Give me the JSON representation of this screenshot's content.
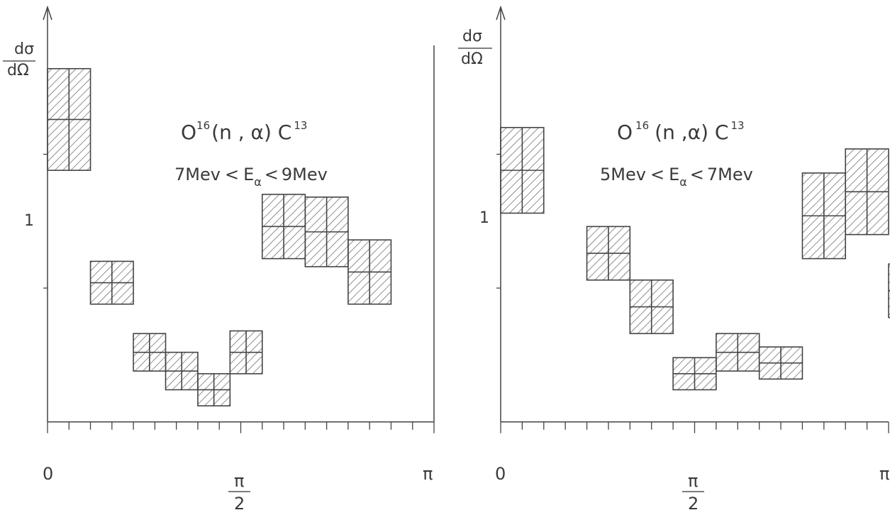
{
  "chart_data": [
    {
      "type": "bar",
      "title": "O¹⁶(n,α)C¹³",
      "title_parts": {
        "t1": "O",
        "s1": "16",
        "t2": "(n , α) C",
        "s2": "13"
      },
      "subtitle": "7Mev < Eα < 9Mev",
      "subtitle_parts": {
        "a": "7Mev",
        "b": "<",
        "c": "E",
        "d": "α",
        "e": "<",
        "f": "9Mev"
      },
      "ylabel_num": "dσ",
      "ylabel_den": "dΩ",
      "y_tick_label": "1",
      "y_tick_value": 1,
      "y_ticks": [
        0.5,
        1
      ],
      "x_tick_labels": {
        "zero": "0",
        "half_num": "π",
        "half_den": "2",
        "full": "π"
      },
      "xlim": [
        0,
        3.1416
      ],
      "ylim": [
        -0.12,
        1.55
      ],
      "x_minor_ticks": 18,
      "grid": false,
      "values": [
        {
          "x0": 0.0,
          "x1": 0.3491,
          "y": 1.13,
          "err": 0.19
        },
        {
          "x0": 0.3491,
          "x1": 0.6981,
          "y": 0.52,
          "err": 0.08
        },
        {
          "x0": 0.6981,
          "x1": 0.9599,
          "y": 0.26,
          "err": 0.07
        },
        {
          "x0": 0.9599,
          "x1": 1.2217,
          "y": 0.19,
          "err": 0.07
        },
        {
          "x0": 1.2217,
          "x1": 1.4835,
          "y": 0.12,
          "err": 0.06
        },
        {
          "x0": 1.4835,
          "x1": 1.7453,
          "y": 0.26,
          "err": 0.08
        },
        {
          "x0": 1.7453,
          "x1": 2.0944,
          "y": 0.73,
          "err": 0.12
        },
        {
          "x0": 2.0944,
          "x1": 2.4435,
          "y": 0.71,
          "err": 0.13
        },
        {
          "x0": 2.4435,
          "x1": 2.7925,
          "y": 0.56,
          "err": 0.12
        }
      ]
    },
    {
      "type": "bar",
      "title": "O¹⁶(n,α)C¹³",
      "title_parts": {
        "t1": "O",
        "s1": "16",
        "t2": "(n ,α) C",
        "s2": "13"
      },
      "subtitle": "5Mev < Eα < 7Mev",
      "subtitle_parts": {
        "a": "5Mev",
        "b": "<",
        "c": "E",
        "d": "α",
        "e": "<",
        "f": "7Mev"
      },
      "ylabel_num": "dσ",
      "ylabel_den": "dΩ",
      "y_tick_label": "1",
      "y_tick_value": 1,
      "y_ticks": [
        0.5,
        1
      ],
      "x_tick_labels": {
        "zero": "0",
        "half_num": "π",
        "half_den": "2",
        "full": "π"
      },
      "xlim": [
        0,
        3.1416
      ],
      "ylim": [
        -0.12,
        1.55
      ],
      "x_minor_ticks": 18,
      "grid": false,
      "values": [
        {
          "x0": 0.0,
          "x1": 0.3491,
          "y": 0.94,
          "err": 0.16
        },
        {
          "x0": 0.6981,
          "x1": 1.0472,
          "y": 0.63,
          "err": 0.1
        },
        {
          "x0": 1.0472,
          "x1": 1.3963,
          "y": 0.43,
          "err": 0.1
        },
        {
          "x0": 1.3963,
          "x1": 1.7453,
          "y": 0.18,
          "err": 0.06
        },
        {
          "x0": 1.7453,
          "x1": 2.0944,
          "y": 0.26,
          "err": 0.07
        },
        {
          "x0": 2.0944,
          "x1": 2.4435,
          "y": 0.22,
          "err": 0.06
        },
        {
          "x0": 2.4435,
          "x1": 2.7925,
          "y": 0.77,
          "err": 0.16
        },
        {
          "x0": 2.7925,
          "x1": 3.1416,
          "y": 0.86,
          "err": 0.16
        },
        {
          "x0": 3.1416,
          "x1": 3.4907,
          "y": 0.49,
          "err": 0.1
        }
      ]
    }
  ]
}
